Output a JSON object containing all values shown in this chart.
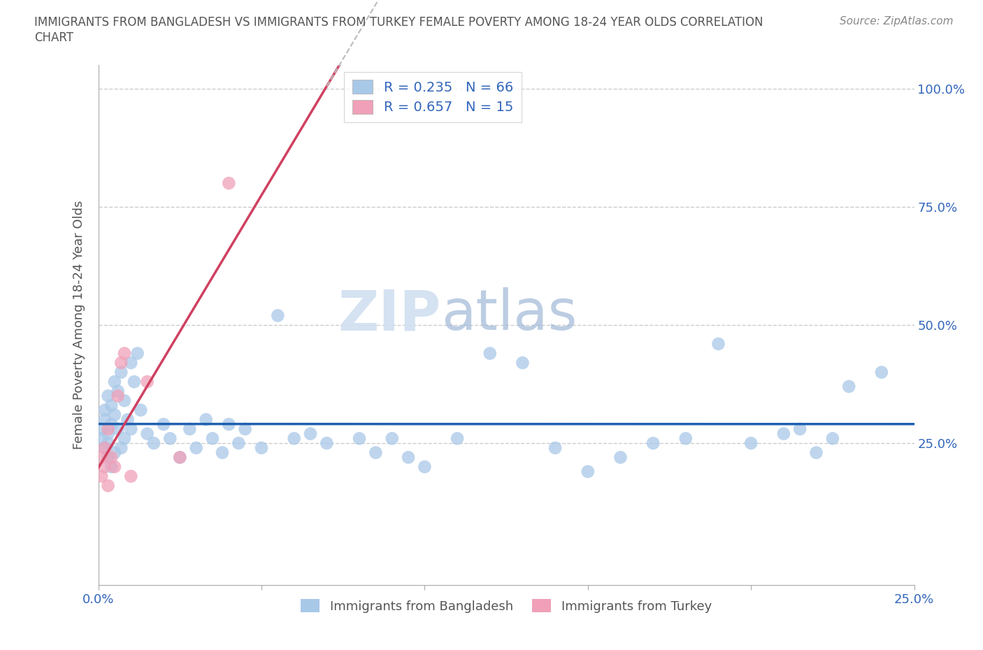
{
  "title_line1": "IMMIGRANTS FROM BANGLADESH VS IMMIGRANTS FROM TURKEY FEMALE POVERTY AMONG 18-24 YEAR OLDS CORRELATION",
  "title_line2": "CHART",
  "source": "Source: ZipAtlas.com",
  "ylabel": "Female Poverty Among 18-24 Year Olds",
  "xlim": [
    0.0,
    0.25
  ],
  "ylim": [
    -0.05,
    1.05
  ],
  "color_bangladesh": "#a8c8e8",
  "color_turkey": "#f0a0b8",
  "line_color_bangladesh": "#2060b0",
  "line_color_turkey": "#d04060",
  "watermark_zip": "ZIP",
  "watermark_atlas": "atlas",
  "legend_label1": "R = 0.235   N = 66",
  "legend_label2": "R = 0.657   N = 15",
  "legend_bottom1": "Immigrants from Bangladesh",
  "legend_bottom2": "Immigrants from Turkey",
  "bangladesh_x": [
    0.001,
    0.001,
    0.002,
    0.002,
    0.002,
    0.003,
    0.003,
    0.003,
    0.003,
    0.004,
    0.004,
    0.004,
    0.005,
    0.005,
    0.005,
    0.006,
    0.006,
    0.007,
    0.007,
    0.008,
    0.008,
    0.009,
    0.01,
    0.01,
    0.011,
    0.012,
    0.013,
    0.015,
    0.017,
    0.02,
    0.022,
    0.025,
    0.028,
    0.03,
    0.033,
    0.035,
    0.038,
    0.04,
    0.043,
    0.045,
    0.05,
    0.055,
    0.06,
    0.065,
    0.07,
    0.08,
    0.085,
    0.09,
    0.095,
    0.1,
    0.11,
    0.12,
    0.13,
    0.14,
    0.15,
    0.16,
    0.17,
    0.18,
    0.19,
    0.2,
    0.21,
    0.215,
    0.22,
    0.225,
    0.23,
    0.24
  ],
  "bangladesh_y": [
    0.26,
    0.28,
    0.3,
    0.24,
    0.32,
    0.27,
    0.35,
    0.22,
    0.25,
    0.33,
    0.29,
    0.2,
    0.38,
    0.31,
    0.23,
    0.36,
    0.28,
    0.4,
    0.24,
    0.34,
    0.26,
    0.3,
    0.42,
    0.28,
    0.38,
    0.44,
    0.32,
    0.27,
    0.25,
    0.29,
    0.26,
    0.22,
    0.28,
    0.24,
    0.3,
    0.26,
    0.23,
    0.29,
    0.25,
    0.28,
    0.24,
    0.52,
    0.26,
    0.27,
    0.25,
    0.26,
    0.23,
    0.26,
    0.22,
    0.2,
    0.26,
    0.44,
    0.42,
    0.24,
    0.19,
    0.22,
    0.25,
    0.26,
    0.46,
    0.25,
    0.27,
    0.28,
    0.23,
    0.26,
    0.37,
    0.4
  ],
  "turkey_x": [
    0.001,
    0.001,
    0.002,
    0.002,
    0.003,
    0.003,
    0.004,
    0.005,
    0.006,
    0.007,
    0.008,
    0.01,
    0.015,
    0.025,
    0.04
  ],
  "turkey_y": [
    0.22,
    0.18,
    0.2,
    0.24,
    0.16,
    0.28,
    0.22,
    0.2,
    0.35,
    0.42,
    0.44,
    0.18,
    0.38,
    0.22,
    0.8
  ]
}
